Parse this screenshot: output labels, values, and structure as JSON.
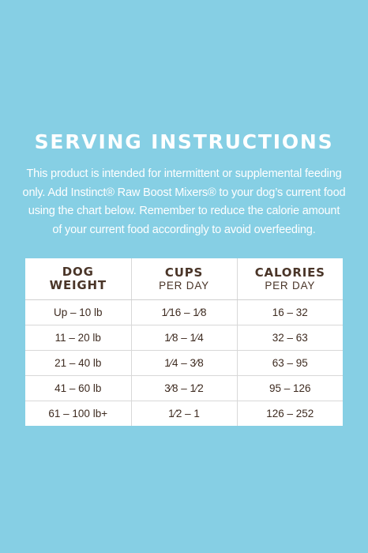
{
  "title": "SERVING INSTRUCTIONS",
  "intro_lines": [
    "This product is intended for intermittent or supplemental feeding",
    "only. Add Instinct® Raw Boost Mixers® to your dog’s current food",
    "using the chart below. Remember to reduce the calorie amount",
    "of your current food accordingly to avoid overfeeding."
  ],
  "table": {
    "headers": [
      {
        "main": "DOG",
        "sub": "WEIGHT",
        "sub_bold": true
      },
      {
        "main": "CUPS",
        "sub": "PER DAY",
        "sub_bold": false
      },
      {
        "main": "CALORIES",
        "sub": "PER DAY",
        "sub_bold": false
      }
    ],
    "rows": [
      [
        "Up – 10 lb",
        "1⁄16 – 1⁄8",
        "16 – 32"
      ],
      [
        "11 – 20 lb",
        "1⁄8 – 1⁄4",
        "32 – 63"
      ],
      [
        "21 – 40 lb",
        "1⁄4 – 3⁄8",
        "63 – 95"
      ],
      [
        "41 – 60 lb",
        "3⁄8 – 1⁄2",
        "95 – 126"
      ],
      [
        "61 – 100 lb+",
        "1⁄2 – 1",
        "126 – 252"
      ]
    ]
  },
  "colors": {
    "background": "#86cfe4",
    "text_light": "#ffffff",
    "table_text": "#3e2b20",
    "table_bg": "#ffffff"
  }
}
